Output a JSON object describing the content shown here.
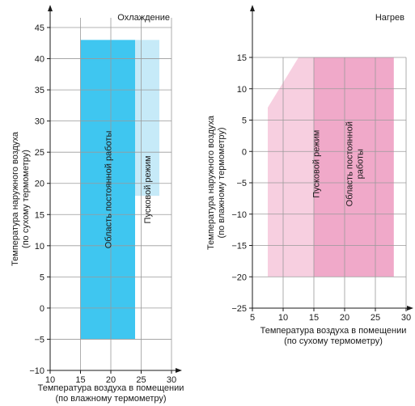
{
  "chart_data": [
    {
      "type": "area",
      "title": "Охлаждение",
      "xlabel": [
        "Температура воздуха в помещении",
        "(по влажному термометру)"
      ],
      "ylabel": [
        "Температура наружного воздуха",
        "(по сухому термометру)"
      ],
      "xlim": [
        10,
        30
      ],
      "ylim": [
        -10,
        45
      ],
      "xticks": [
        10,
        15,
        20,
        25,
        30
      ],
      "yticks": [
        -10,
        -5,
        0,
        5,
        10,
        15,
        20,
        25,
        30,
        35,
        40,
        45
      ],
      "grid": true,
      "regions": [
        {
          "name": "Область постоянной работы",
          "color": "#3fc6f0",
          "polygon": [
            [
              15,
              -5
            ],
            [
              24,
              -5
            ],
            [
              24,
              43
            ],
            [
              15,
              43
            ]
          ]
        },
        {
          "name": "Пусковой режим",
          "color": "#c6eaf8",
          "polygon": [
            [
              24,
              18
            ],
            [
              28,
              18
            ],
            [
              28,
              43
            ],
            [
              24,
              43
            ]
          ]
        }
      ]
    },
    {
      "type": "area",
      "title": "Нагрев",
      "xlabel": [
        "Температура воздуха в помещении",
        "(по сухому термометру)"
      ],
      "ylabel": [
        "Температура наружного воздуха",
        "(по влажному термометру)"
      ],
      "xlim": [
        5,
        30
      ],
      "ylim": [
        -25,
        15
      ],
      "xticks": [
        5,
        10,
        15,
        20,
        25,
        30
      ],
      "yticks": [
        -25,
        -20,
        -15,
        -10,
        -5,
        0,
        5,
        10,
        15
      ],
      "grid": true,
      "regions": [
        {
          "name": "Пусковой режим",
          "color": "#f7cfe0",
          "polygon": [
            [
              7.5,
              -20
            ],
            [
              15,
              -20
            ],
            [
              15,
              15
            ],
            [
              12.5,
              15
            ],
            [
              7.5,
              7
            ]
          ]
        },
        {
          "name": "Область постоянной работы",
          "color": "#f0a9c9",
          "polygon": [
            [
              15,
              -20
            ],
            [
              28,
              -20
            ],
            [
              28,
              15
            ],
            [
              15,
              15
            ]
          ]
        }
      ]
    }
  ]
}
